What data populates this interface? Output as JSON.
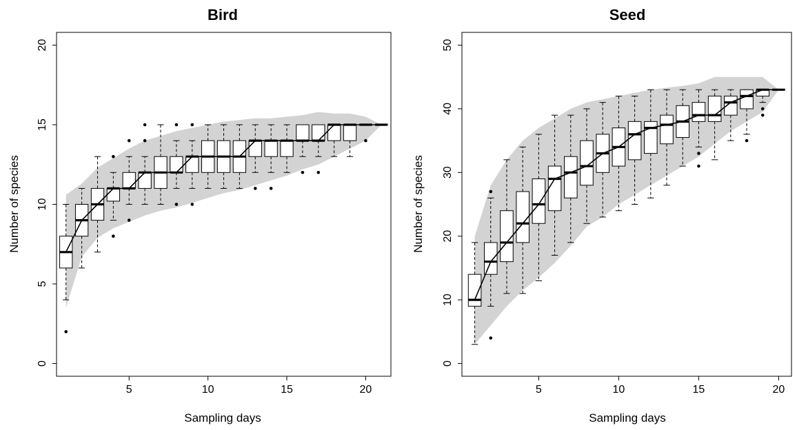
{
  "chart_data": [
    {
      "type": "boxplot",
      "title": "Bird",
      "xlabel": "Sampling days",
      "ylabel": "Number of species",
      "xlim": [
        0.4,
        21.6
      ],
      "ylim": [
        -0.8,
        20.8
      ],
      "xticks": [
        5,
        10,
        15,
        20
      ],
      "yticks": [
        0,
        5,
        10,
        15,
        20
      ],
      "colors": {
        "band": "#d3d3d3",
        "box": "#ffffff",
        "line": "#000000"
      },
      "envelope": {
        "x": [
          1,
          2,
          3,
          4,
          5,
          6,
          7,
          8,
          9,
          10,
          11,
          12,
          13,
          14,
          15,
          16,
          17,
          18,
          19,
          20,
          21
        ],
        "upper": [
          10.6,
          11.3,
          12.3,
          12.9,
          13.5,
          14.0,
          14.3,
          14.6,
          14.8,
          15.0,
          15.2,
          15.3,
          15.4,
          15.4,
          15.5,
          15.6,
          15.8,
          15.7,
          15.7,
          15.5,
          15.0
        ],
        "lower": [
          3.5,
          6.7,
          7.9,
          8.5,
          8.9,
          9.3,
          9.6,
          9.8,
          10.1,
          10.4,
          10.7,
          10.9,
          11.2,
          11.5,
          11.8,
          12.2,
          12.5,
          13.0,
          13.5,
          14.0,
          15.0
        ]
      },
      "boxes": [
        {
          "x": 1,
          "lo": 4,
          "q1": 6,
          "med": 7,
          "q3": 8,
          "hi": 10,
          "out": [
            2
          ]
        },
        {
          "x": 2,
          "lo": 6,
          "q1": 8,
          "med": 9,
          "q3": 10,
          "hi": 11,
          "out": []
        },
        {
          "x": 3,
          "lo": 7,
          "q1": 9,
          "med": 10,
          "q3": 11,
          "hi": 13,
          "out": []
        },
        {
          "x": 4,
          "lo": 9,
          "q1": 10.2,
          "med": 11,
          "q3": 11,
          "hi": 12,
          "out": [
            13,
            8
          ]
        },
        {
          "x": 5,
          "lo": 10,
          "q1": 11,
          "med": 11,
          "q3": 12,
          "hi": 13,
          "out": [
            14,
            9
          ]
        },
        {
          "x": 6,
          "lo": 10,
          "q1": 11,
          "med": 12,
          "q3": 12,
          "hi": 13,
          "out": [
            15,
            14
          ]
        },
        {
          "x": 7,
          "lo": 10,
          "q1": 11,
          "med": 12,
          "q3": 13,
          "hi": 15,
          "out": []
        },
        {
          "x": 8,
          "lo": 11,
          "q1": 12,
          "med": 12,
          "q3": 13,
          "hi": 14,
          "out": [
            15,
            10
          ]
        },
        {
          "x": 9,
          "lo": 11,
          "q1": 12,
          "med": 13,
          "q3": 13,
          "hi": 14,
          "out": [
            15,
            10
          ]
        },
        {
          "x": 10,
          "lo": 11,
          "q1": 12,
          "med": 13,
          "q3": 14,
          "hi": 15,
          "out": []
        },
        {
          "x": 11,
          "lo": 11,
          "q1": 12,
          "med": 13,
          "q3": 14,
          "hi": 15,
          "out": []
        },
        {
          "x": 12,
          "lo": 11,
          "q1": 12,
          "med": 13,
          "q3": 14,
          "hi": 15,
          "out": []
        },
        {
          "x": 13,
          "lo": 12,
          "q1": 13,
          "med": 14,
          "q3": 14,
          "hi": 15,
          "out": [
            11
          ]
        },
        {
          "x": 14,
          "lo": 12,
          "q1": 13,
          "med": 14,
          "q3": 14,
          "hi": 15,
          "out": [
            11
          ]
        },
        {
          "x": 15,
          "lo": 12,
          "q1": 13,
          "med": 14,
          "q3": 14,
          "hi": 15,
          "out": []
        },
        {
          "x": 16,
          "lo": 13,
          "q1": 14,
          "med": 14,
          "q3": 15,
          "hi": 15,
          "out": [
            12
          ]
        },
        {
          "x": 17,
          "lo": 13,
          "q1": 14,
          "med": 14,
          "q3": 15,
          "hi": 15,
          "out": [
            12
          ]
        },
        {
          "x": 18,
          "lo": 13,
          "q1": 14,
          "med": 15,
          "q3": 15,
          "hi": 15,
          "out": []
        },
        {
          "x": 19,
          "lo": 13,
          "q1": 14,
          "med": 15,
          "q3": 15,
          "hi": 15,
          "out": []
        },
        {
          "x": 20,
          "lo": 15,
          "q1": 15,
          "med": 15,
          "q3": 15,
          "hi": 15,
          "out": [
            14
          ]
        },
        {
          "x": 21,
          "lo": 15,
          "q1": 15,
          "med": 15,
          "q3": 15,
          "hi": 15,
          "out": []
        }
      ]
    },
    {
      "type": "boxplot",
      "title": "Seed",
      "xlabel": "Sampling days",
      "ylabel": "Number of species",
      "xlim": [
        0.2,
        20.8
      ],
      "ylim": [
        -2,
        52
      ],
      "xticks": [
        5,
        10,
        15,
        20
      ],
      "yticks": [
        0,
        10,
        20,
        30,
        40,
        50
      ],
      "colors": {
        "band": "#d3d3d3",
        "box": "#ffffff",
        "line": "#000000"
      },
      "envelope": {
        "x": [
          1,
          2,
          3,
          4,
          5,
          6,
          7,
          8,
          9,
          10,
          11,
          12,
          13,
          14,
          15,
          16,
          17,
          18,
          19,
          20
        ],
        "upper": [
          20,
          28,
          32,
          35,
          37,
          38.5,
          40,
          41,
          41.5,
          42,
          42.5,
          43,
          43.3,
          43.6,
          44,
          45,
          45,
          45,
          45,
          43
        ],
        "lower": [
          3,
          6,
          9,
          11.5,
          13.5,
          15.8,
          18.5,
          21.5,
          23,
          25,
          26.5,
          28,
          29.5,
          31,
          32.5,
          34.5,
          36.5,
          38,
          39.5,
          43
        ]
      },
      "boxes": [
        {
          "x": 1,
          "lo": 3,
          "q1": 9,
          "med": 10,
          "q3": 14,
          "hi": 19,
          "out": []
        },
        {
          "x": 2,
          "lo": 9,
          "q1": 14,
          "med": 16,
          "q3": 19,
          "hi": 26,
          "out": [
            27,
            4
          ]
        },
        {
          "x": 3,
          "lo": 11,
          "q1": 16,
          "med": 19,
          "q3": 24,
          "hi": 32,
          "out": []
        },
        {
          "x": 4,
          "lo": 11,
          "q1": 19,
          "med": 22,
          "q3": 27,
          "hi": 34,
          "out": []
        },
        {
          "x": 5,
          "lo": 13,
          "q1": 22,
          "med": 25,
          "q3": 29,
          "hi": 36,
          "out": []
        },
        {
          "x": 6,
          "lo": 17,
          "q1": 24,
          "med": 29,
          "q3": 31,
          "hi": 39,
          "out": []
        },
        {
          "x": 7,
          "lo": 19,
          "q1": 26,
          "med": 30,
          "q3": 32.5,
          "hi": 39,
          "out": []
        },
        {
          "x": 8,
          "lo": 22,
          "q1": 28,
          "med": 31,
          "q3": 35,
          "hi": 40,
          "out": []
        },
        {
          "x": 9,
          "lo": 23,
          "q1": 30,
          "med": 33,
          "q3": 36,
          "hi": 41,
          "out": []
        },
        {
          "x": 10,
          "lo": 24,
          "q1": 31,
          "med": 34,
          "q3": 37,
          "hi": 42,
          "out": []
        },
        {
          "x": 11,
          "lo": 25,
          "q1": 32,
          "med": 36,
          "q3": 38,
          "hi": 42,
          "out": []
        },
        {
          "x": 12,
          "lo": 26,
          "q1": 33,
          "med": 37,
          "q3": 38,
          "hi": 43,
          "out": []
        },
        {
          "x": 13,
          "lo": 28,
          "q1": 34.5,
          "med": 37.5,
          "q3": 39,
          "hi": 43,
          "out": []
        },
        {
          "x": 14,
          "lo": 31,
          "q1": 35.5,
          "med": 38,
          "q3": 40.5,
          "hi": 43,
          "out": []
        },
        {
          "x": 15,
          "lo": 34,
          "q1": 38,
          "med": 39,
          "q3": 41,
          "hi": 43,
          "out": [
            33,
            31
          ]
        },
        {
          "x": 16,
          "lo": 32,
          "q1": 38,
          "med": 39,
          "q3": 42,
          "hi": 43,
          "out": []
        },
        {
          "x": 17,
          "lo": 35,
          "q1": 39,
          "med": 41,
          "q3": 42,
          "hi": 43,
          "out": []
        },
        {
          "x": 18,
          "lo": 36,
          "q1": 40,
          "med": 42,
          "q3": 43,
          "hi": 43,
          "out": [
            35
          ]
        },
        {
          "x": 19,
          "lo": 41,
          "q1": 42,
          "med": 43,
          "q3": 43,
          "hi": 43,
          "out": [
            40,
            39
          ]
        },
        {
          "x": 20,
          "lo": 43,
          "q1": 43,
          "med": 43,
          "q3": 43,
          "hi": 43,
          "out": []
        }
      ]
    }
  ]
}
